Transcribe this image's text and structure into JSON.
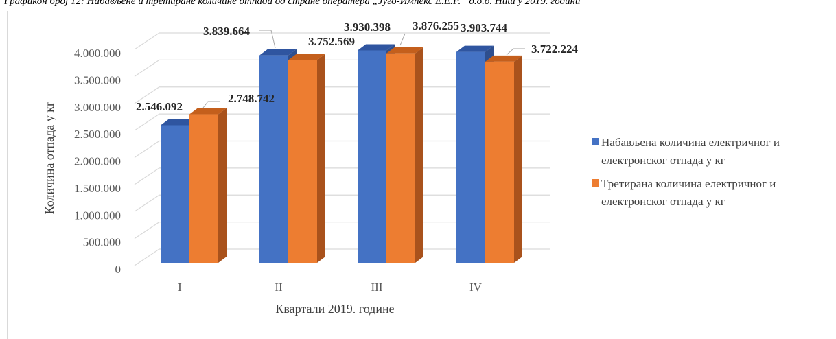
{
  "caption": "Графикон број 12: Набављене и третиране количине отпада од стране оператера „Југо-Импекс Е.Е.Р.“ д.о.о. Ниш у 2019. години",
  "colors": {
    "series1": "#4472c4",
    "series1_top": "#2f55a0",
    "series1_side": "#2e4f8f",
    "series2": "#ed7d31",
    "series2_top": "#c45f1c",
    "series2_side": "#a9521c",
    "grid": "#d9d9d9"
  },
  "chart_data": {
    "type": "bar",
    "categories": [
      "I",
      "II",
      "III",
      "IV"
    ],
    "series": [
      {
        "name": "Набављена количина електричног и електронског отпада у кг",
        "legend_lines": [
          "Набављена количина електричног и",
          "електронског отпада у кг"
        ],
        "values": [
          2546092,
          3839664,
          3930398,
          3903744
        ],
        "labels": [
          "2.546.092",
          "3.839.664",
          "3.930.398",
          "3.903.744"
        ]
      },
      {
        "name": "Третирана количина електричног и електронског отпада у кг",
        "legend_lines": [
          "Третирана количина електричног и",
          "електронског отпада у кг"
        ],
        "values": [
          2748742,
          3752569,
          3876255,
          3722224
        ],
        "labels": [
          "2.748.742",
          "3.752.569",
          "3.876.255",
          "3.722.224"
        ]
      }
    ],
    "ylim": [
      0,
      4000000
    ],
    "yticks": [
      "0",
      "500.000",
      "1.000.000",
      "1.500.000",
      "2.000.000",
      "2.500.000",
      "3.000.000",
      "3.500.000",
      "4.000.000"
    ],
    "xlabel": "Квартали 2019. године",
    "ylabel": "Количина отпада у кг",
    "legend_position": "right",
    "grid": true,
    "three_d": true
  }
}
